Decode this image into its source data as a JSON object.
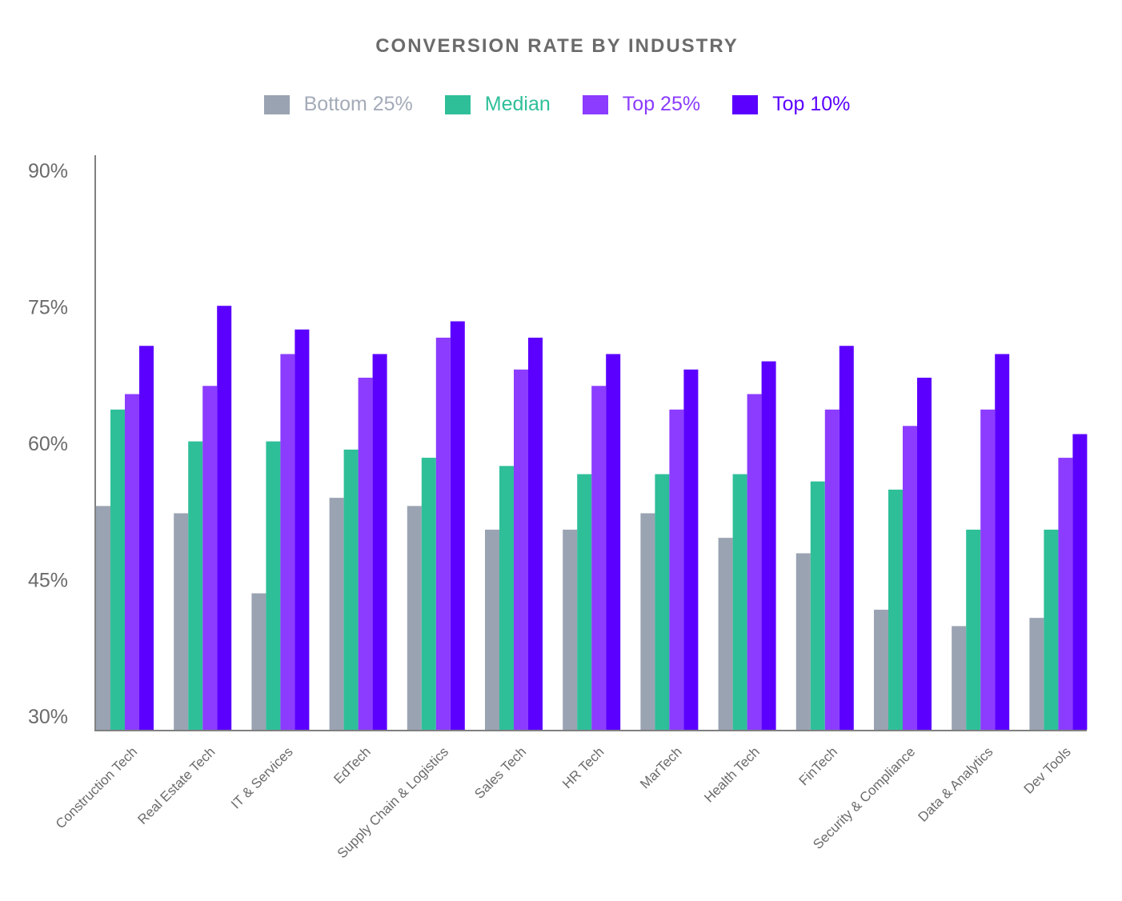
{
  "chart_data": {
    "type": "bar",
    "title": "CONVERSION RATE BY INDUSTRY",
    "xlabel": "",
    "ylabel": "",
    "ylim": [
      28.5,
      90
    ],
    "yticks": [
      "30%",
      "45%",
      "60%",
      "75%",
      "90%"
    ],
    "ytick_values": [
      30,
      45,
      60,
      75,
      90
    ],
    "grid": false,
    "legend": "top-center",
    "categories": [
      "Construction Tech",
      "Real Estate Tech",
      "IT & Services",
      "EdTech",
      "Supply Chain & Logistics",
      "Sales Tech",
      "HR Tech",
      "MarTech",
      "Health Tech",
      "FinTech",
      "Security & Compliance",
      "Data & Analytics",
      "Dev Tools"
    ],
    "series": [
      {
        "name": "Bottom 25%",
        "color": "#9aa3b2",
        "legend_text_color": "#a4abb8",
        "values": [
          53.1,
          52.3,
          43.5,
          54.0,
          53.1,
          50.5,
          50.5,
          52.3,
          49.6,
          47.9,
          41.7,
          39.9,
          40.8
        ]
      },
      {
        "name": "Median",
        "color": "#2ebf99",
        "legend_text_color": "#2ebf99",
        "values": [
          63.7,
          60.2,
          60.2,
          59.3,
          58.4,
          57.5,
          56.6,
          56.6,
          56.6,
          55.8,
          54.9,
          50.5,
          50.5
        ]
      },
      {
        "name": "Top 25%",
        "color": "#8b3cff",
        "legend_text_color": "#8b3cff",
        "values": [
          65.4,
          66.3,
          69.8,
          67.2,
          71.6,
          68.1,
          66.3,
          63.7,
          65.4,
          63.7,
          61.9,
          63.7,
          58.4
        ]
      },
      {
        "name": "Top 10%",
        "color": "#5b00ff",
        "legend_text_color": "#5b00ff",
        "values": [
          70.7,
          75.1,
          72.5,
          69.8,
          73.4,
          71.6,
          69.8,
          68.1,
          69.0,
          70.7,
          67.2,
          69.8,
          61.0
        ]
      }
    ]
  }
}
